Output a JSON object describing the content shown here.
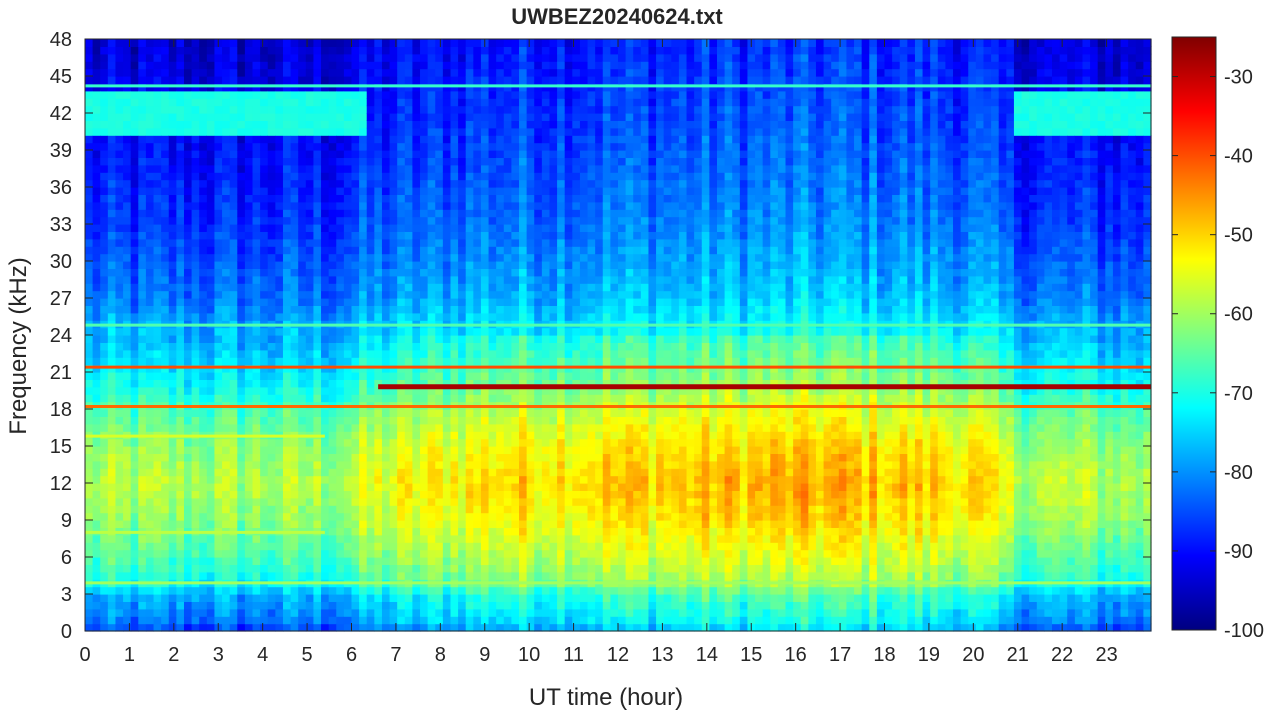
{
  "chart_data": {
    "type": "heatmap",
    "title": "UWBEZ20240624.txt",
    "xlabel": "UT time (hour)",
    "ylabel": "Frequency (kHz)",
    "xlim": [
      0,
      24
    ],
    "ylim": [
      0,
      48
    ],
    "x_ticks": [
      0,
      1,
      2,
      3,
      4,
      5,
      6,
      7,
      8,
      9,
      10,
      11,
      12,
      13,
      14,
      15,
      16,
      17,
      18,
      19,
      20,
      21,
      22,
      23
    ],
    "y_ticks": [
      0,
      3,
      6,
      9,
      12,
      15,
      18,
      21,
      24,
      27,
      30,
      33,
      36,
      39,
      42,
      45,
      48
    ],
    "colorbar": {
      "colormap": "jet",
      "range": [
        -100,
        -25
      ],
      "ticks": [
        -100,
        -90,
        -80,
        -70,
        -60,
        -50,
        -40,
        -30
      ]
    },
    "background_level_profile": [
      {
        "f": 0.0,
        "level": -83
      },
      {
        "f": 1.0,
        "level": -78
      },
      {
        "f": 3.0,
        "level": -74
      },
      {
        "f": 4.0,
        "level": -67
      },
      {
        "f": 6.0,
        "level": -63
      },
      {
        "f": 9.0,
        "level": -58
      },
      {
        "f": 12.0,
        "level": -55
      },
      {
        "f": 15.0,
        "level": -58
      },
      {
        "f": 17.5,
        "level": -62
      },
      {
        "f": 20.0,
        "level": -68
      },
      {
        "f": 23.0,
        "level": -73
      },
      {
        "f": 27.0,
        "level": -80
      },
      {
        "f": 33.0,
        "level": -85
      },
      {
        "f": 39.0,
        "level": -88
      },
      {
        "f": 48.0,
        "level": -92
      }
    ],
    "time_activity_profile": [
      {
        "t": 0.0,
        "offset": -4
      },
      {
        "t": 5.4,
        "offset": -4
      },
      {
        "t": 6.5,
        "offset": 0
      },
      {
        "t": 9.0,
        "offset": 5
      },
      {
        "t": 14.0,
        "offset": 7
      },
      {
        "t": 17.0,
        "offset": 8
      },
      {
        "t": 20.0,
        "offset": 5
      },
      {
        "t": 21.0,
        "offset": -2
      },
      {
        "t": 24.0,
        "offset": -4
      }
    ],
    "transmitter_lines": [
      {
        "f_khz": 19.8,
        "t_start": 6.6,
        "t_end": 24.0,
        "level": -28
      },
      {
        "f_khz": 18.2,
        "t_start": 0.0,
        "t_end": 24.0,
        "level": -42
      },
      {
        "f_khz": 21.4,
        "t_start": 0.0,
        "t_end": 24.0,
        "level": -40
      },
      {
        "f_khz": 24.8,
        "t_start": 0.0,
        "t_end": 24.0,
        "level": -66
      },
      {
        "f_khz": 44.2,
        "t_start": 0.0,
        "t_end": 24.0,
        "level": -68
      },
      {
        "f_khz": 3.9,
        "t_start": 0.0,
        "t_end": 24.0,
        "level": -60
      },
      {
        "f_khz": 8.0,
        "t_start": 0.0,
        "t_end": 5.4,
        "level": -58
      },
      {
        "f_khz": 15.8,
        "t_start": 0.0,
        "t_end": 5.4,
        "level": -56
      }
    ],
    "enhanced_band": {
      "f_low": 40.5,
      "f_high": 44.0,
      "level": -70,
      "intervals": [
        [
          0.0,
          6.4
        ],
        [
          20.9,
          24.0
        ]
      ]
    }
  }
}
